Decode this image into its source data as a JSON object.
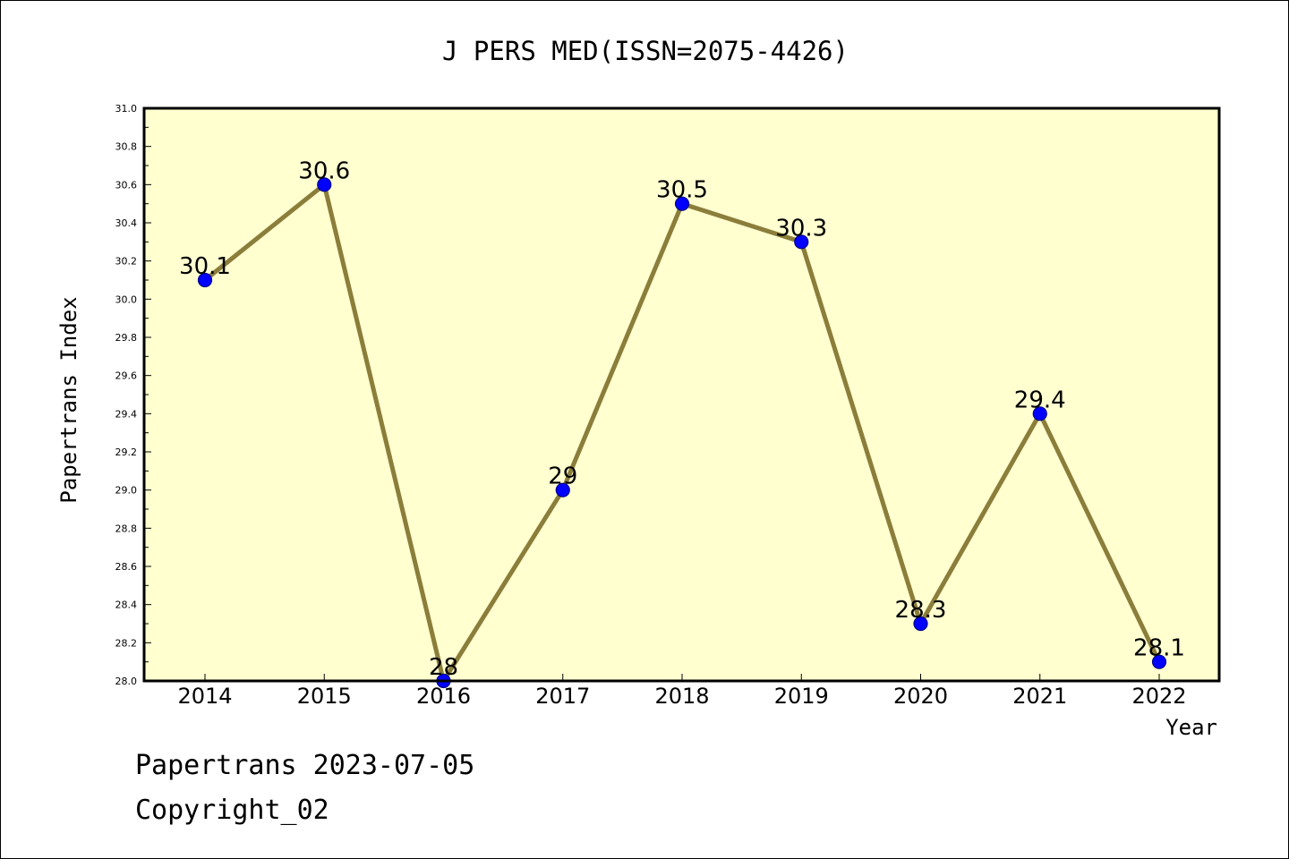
{
  "chart_data": {
    "type": "line",
    "title": "J PERS MED(ISSN=2075-4426)",
    "xlabel": "Year",
    "ylabel": "Papertrans Index",
    "categories": [
      "2014",
      "2015",
      "2016",
      "2017",
      "2018",
      "2019",
      "2020",
      "2021",
      "2022"
    ],
    "series": [
      {
        "values": [
          30.1,
          30.6,
          28.0,
          29.0,
          30.5,
          30.3,
          28.3,
          29.4,
          28.1
        ],
        "data_labels": [
          "30.1",
          "30.6",
          "28",
          "29",
          "30.5",
          "30.3",
          "28.3",
          "29.4",
          "28.1"
        ]
      }
    ],
    "ylim": [
      28.0,
      31.0
    ],
    "yticks": [
      "28.0",
      "28.2",
      "28.4",
      "28.6",
      "28.8",
      "29.0",
      "29.2",
      "29.4",
      "29.6",
      "29.8",
      "30.0",
      "30.2",
      "30.4",
      "30.6",
      "30.8",
      "31.0"
    ],
    "grid": false,
    "legend": "none"
  },
  "footer": {
    "line1": "Papertrans 2023-07-05",
    "line2": "Copyright_02"
  },
  "colors": {
    "plot_background": "#ffffd0",
    "line": "#8b7d3a",
    "marker": "#0000ff",
    "marker_edge": "#00008b"
  }
}
